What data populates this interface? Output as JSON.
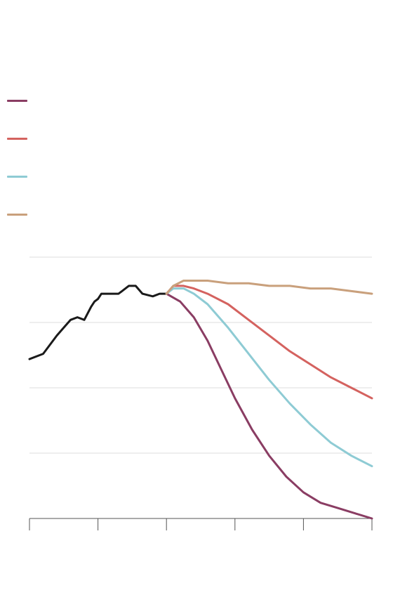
{
  "chart_data": {
    "type": "line",
    "title": "",
    "xlabel": "",
    "ylabel": "",
    "xlim": [
      0,
      100
    ],
    "ylim": [
      0,
      100
    ],
    "grid": true,
    "legend_position": "top-left",
    "series": [
      {
        "color": "#1a1a1a",
        "x": [
          0,
          4,
          8,
          10,
          12,
          14,
          16,
          18,
          19,
          20,
          21,
          23,
          24,
          26,
          27,
          29,
          31,
          33,
          36,
          38,
          39,
          40
        ],
        "y": [
          61,
          63,
          70,
          73,
          76,
          77,
          76,
          81,
          83,
          84,
          86,
          86,
          86,
          86,
          87,
          89,
          89,
          86,
          85,
          86,
          86,
          86
        ]
      },
      {
        "color": "#8a3d63",
        "x": [
          40,
          44,
          48,
          52,
          56,
          60,
          65,
          70,
          75,
          80,
          85,
          90,
          95,
          100
        ],
        "y": [
          86,
          83,
          77,
          68,
          57,
          46,
          34,
          24,
          16,
          10,
          6,
          4,
          2,
          0
        ]
      },
      {
        "color": "#d4625f",
        "x": [
          40,
          42,
          45,
          48,
          52,
          58,
          64,
          70,
          76,
          82,
          88,
          94,
          100
        ],
        "y": [
          86,
          89,
          89,
          88,
          86,
          82,
          76,
          70,
          64,
          59,
          54,
          50,
          46
        ]
      },
      {
        "color": "#8ecbd4",
        "x": [
          40,
          42,
          45,
          48,
          52,
          58,
          64,
          70,
          76,
          82,
          88,
          94,
          100
        ],
        "y": [
          86,
          88,
          88,
          86,
          82,
          73,
          63,
          53,
          44,
          36,
          29,
          24,
          20
        ]
      },
      {
        "color": "#c9a07c",
        "x": [
          40,
          42,
          45,
          48,
          52,
          58,
          64,
          70,
          76,
          82,
          88,
          94,
          100
        ],
        "y": [
          86,
          89,
          91,
          91,
          91,
          90,
          90,
          89,
          89,
          88,
          88,
          87,
          86
        ]
      }
    ],
    "yticks": [
      0,
      25,
      50,
      75,
      100
    ],
    "xticks": [
      0,
      20,
      40,
      60,
      80,
      100
    ],
    "colors": {
      "grid": "#dddddd",
      "axis": "#555555"
    }
  },
  "legend": {
    "items": [
      {
        "color": "#8a3d63",
        "label": ""
      },
      {
        "color": "#d4625f",
        "label": ""
      },
      {
        "color": "#8ecbd4",
        "label": ""
      },
      {
        "color": "#c9a07c",
        "label": ""
      }
    ]
  }
}
